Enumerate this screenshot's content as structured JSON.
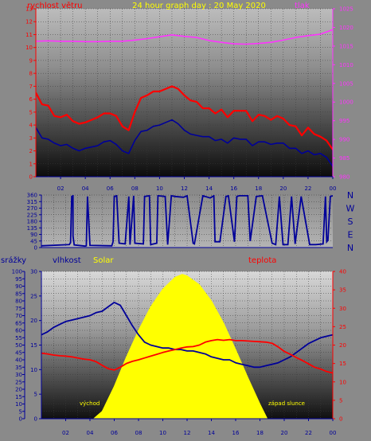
{
  "chart_data": [
    {
      "type": "line",
      "title": "24 hour graph day : 20 May 2020",
      "x_ticks": [
        "02",
        "04",
        "06",
        "08",
        "10",
        "12",
        "14",
        "16",
        "18",
        "20",
        "22",
        "00"
      ],
      "left_axis": {
        "label": "rychlost větru",
        "ylim": [
          0,
          13
        ],
        "ticks": [
          0,
          1,
          2,
          3,
          4,
          5,
          6,
          7,
          8,
          9,
          10,
          11,
          12,
          13
        ]
      },
      "right_axis": {
        "label": "tlak",
        "ylim": [
          980,
          1025
        ],
        "ticks": [
          980,
          985,
          990,
          995,
          1000,
          1005,
          1010,
          1015,
          1020,
          1025
        ]
      },
      "series": [
        {
          "color": "#ff0000",
          "axis": "left",
          "x": [
            0,
            0.5,
            1,
            1.5,
            2,
            2.5,
            3,
            3.5,
            4,
            4.5,
            5,
            5.5,
            6,
            6.5,
            7,
            7.5,
            8,
            8.5,
            9,
            9.5,
            10,
            10.5,
            11,
            11.5,
            12,
            12.5,
            13,
            13.5,
            14,
            14.5,
            15,
            15.5,
            16,
            16.5,
            17,
            17.5,
            18,
            18.5,
            19,
            19.5,
            20,
            20.5,
            21,
            21.5,
            22,
            22.5,
            23,
            23.5,
            24
          ],
          "values": [
            6.5,
            5.6,
            5.5,
            4.7,
            4.6,
            4.8,
            4.3,
            4.1,
            4.2,
            4.4,
            4.6,
            4.9,
            4.9,
            4.7,
            3.9,
            3.6,
            5,
            6.1,
            6.3,
            6.6,
            6.6,
            6.8,
            7,
            6.8,
            6.3,
            5.9,
            5.8,
            5.3,
            5.3,
            4.9,
            5.2,
            4.6,
            5.1,
            5.1,
            5.1,
            4.3,
            4.8,
            4.7,
            4.4,
            4.7,
            4.5,
            4,
            3.9,
            3.2,
            3.8,
            3.3,
            3.1,
            2.8,
            2.1
          ]
        },
        {
          "color": "#000099",
          "axis": "left",
          "x": [
            0,
            0.5,
            1,
            1.5,
            2,
            2.5,
            3,
            3.5,
            4,
            4.5,
            5,
            5.5,
            6,
            6.5,
            7,
            7.5,
            8,
            8.5,
            9,
            9.5,
            10,
            10.5,
            11,
            11.5,
            12,
            12.5,
            13,
            13.5,
            14,
            14.5,
            15,
            15.5,
            16,
            16.5,
            17,
            17.5,
            18,
            18.5,
            19,
            19.5,
            20,
            20.5,
            21,
            21.5,
            22,
            22.5,
            23,
            23.5,
            24
          ],
          "values": [
            3.8,
            3,
            2.9,
            2.6,
            2.4,
            2.5,
            2.2,
            2,
            2.2,
            2.3,
            2.4,
            2.7,
            2.8,
            2.5,
            2,
            1.8,
            2.8,
            3.5,
            3.6,
            3.9,
            4,
            4.2,
            4.4,
            4.1,
            3.6,
            3.3,
            3.2,
            3.1,
            3.1,
            2.8,
            2.9,
            2.6,
            3,
            2.9,
            2.9,
            2.4,
            2.7,
            2.7,
            2.5,
            2.6,
            2.6,
            2.2,
            2.2,
            1.8,
            2,
            1.7,
            1.8,
            1.5,
            0.8
          ]
        },
        {
          "color": "#ff33ff",
          "axis": "right",
          "x": [
            0,
            1,
            2,
            3,
            4,
            5,
            6,
            7,
            8,
            9,
            10,
            11,
            12,
            13,
            14,
            15,
            16,
            17,
            18,
            19,
            20,
            21,
            22,
            23,
            24
          ],
          "values": [
            1016.3,
            1016.4,
            1016.3,
            1016.3,
            1016.2,
            1016.2,
            1016.3,
            1016.3,
            1016.6,
            1017,
            1017.5,
            1018,
            1017.6,
            1017.3,
            1016.5,
            1016,
            1015.6,
            1015.5,
            1015.7,
            1016,
            1016.6,
            1017.3,
            1017.8,
            1018.2,
            1019.4
          ]
        }
      ]
    },
    {
      "type": "line",
      "x_ticks": [
        "02",
        "04",
        "06",
        "08",
        "10",
        "12",
        "14",
        "16",
        "18",
        "20",
        "22",
        "00"
      ],
      "ylim": [
        0,
        360
      ],
      "y_ticks": [
        0,
        45,
        90,
        135,
        180,
        225,
        270,
        315,
        360
      ],
      "direction_labels": [
        "N",
        "W",
        "S",
        "E",
        "N"
      ],
      "series": [
        {
          "color": "#000099",
          "x": [
            0,
            2.3,
            2.4,
            2.4,
            2.5,
            2.6,
            2.6,
            2.7,
            3.6,
            3.7,
            3.8,
            4,
            5.8,
            5.9,
            6,
            6.2,
            6.4,
            6.9,
            7.2,
            7.3,
            7.6,
            7.7,
            8.4,
            8.5,
            8.9,
            9,
            9.5,
            9.6,
            10.2,
            10.4,
            10.7,
            11,
            11.7,
            12,
            12.5,
            12.6,
            13.3,
            13.9,
            14.2,
            14.3,
            14.7,
            15.2,
            15.4,
            15.9,
            16.1,
            16.3,
            17,
            17.2,
            17.7,
            18.2,
            19,
            19.3,
            19.6,
            19.9,
            20.3,
            20.6,
            20.9,
            21.4,
            22.1,
            22.6,
            23.2,
            23.4,
            23.5,
            23.6,
            23.8,
            24
          ],
          "values": [
            12,
            20,
            35,
            30,
            350,
            355,
            80,
            18,
            10,
            12,
            350,
            15,
            12,
            40,
            350,
            355,
            30,
            25,
            350,
            20,
            355,
            30,
            25,
            350,
            355,
            20,
            30,
            355,
            350,
            20,
            355,
            350,
            345,
            355,
            30,
            25,
            355,
            340,
            355,
            40,
            40,
            350,
            355,
            40,
            350,
            355,
            355,
            45,
            350,
            355,
            30,
            20,
            350,
            20,
            20,
            350,
            25,
            350,
            20,
            20,
            25,
            350,
            40,
            50,
            350,
            355
          ]
        }
      ]
    },
    {
      "type": "line",
      "x_ticks": [
        "02",
        "04",
        "06",
        "08",
        "10",
        "12",
        "14",
        "16",
        "18",
        "20",
        "22",
        "00"
      ],
      "axes": [
        {
          "label": "srážky",
          "ylim": [
            0,
            100
          ],
          "ticks": [
            0,
            5,
            10,
            15,
            20,
            25,
            30,
            35,
            40,
            45,
            50,
            55,
            60,
            65,
            70,
            75,
            80,
            85,
            90,
            95,
            100
          ]
        },
        {
          "label": "vlhkost",
          "ylim": [
            0,
            30
          ],
          "ticks": [
            0,
            5,
            10,
            15,
            20,
            25,
            30
          ]
        },
        {
          "label": "Solar"
        },
        {
          "label": "teplota",
          "ylim": [
            0,
            40
          ],
          "ticks": [
            0,
            5,
            10,
            15,
            20,
            25,
            30,
            35,
            40
          ]
        }
      ],
      "annotations": [
        "východ",
        "západ slunce"
      ],
      "series": [
        {
          "color": "#000099",
          "x": [
            0,
            0.5,
            1,
            1.5,
            2,
            2.5,
            3,
            3.5,
            4,
            4.5,
            5,
            5.5,
            6,
            6.5,
            7,
            7.5,
            8,
            8.5,
            9,
            9.5,
            10,
            10.5,
            11,
            11.5,
            12,
            12.5,
            13,
            13.5,
            14,
            14.5,
            15,
            15.5,
            16,
            16.5,
            17,
            17.5,
            18,
            18.5,
            19,
            19.5,
            20,
            20.5,
            21,
            21.5,
            22,
            22.5,
            23,
            23.5,
            24
          ],
          "values": [
            57,
            59,
            62,
            64,
            66,
            67,
            68,
            69,
            70,
            72,
            73,
            76,
            79,
            77,
            70,
            63,
            57,
            52,
            50,
            49,
            48,
            48,
            47,
            47,
            46,
            46,
            45,
            44,
            42,
            41,
            40,
            40,
            38,
            37,
            36,
            35,
            35,
            36,
            37,
            38,
            40,
            42,
            45,
            48,
            51,
            53,
            55,
            56,
            57
          ]
        },
        {
          "color": "#ff0000",
          "x": [
            0,
            0.5,
            1,
            1.5,
            2,
            2.5,
            3,
            3.5,
            4,
            4.5,
            5,
            5.5,
            6,
            6.5,
            7,
            7.5,
            8,
            8.5,
            9,
            9.5,
            10,
            10.5,
            11,
            11.5,
            12,
            12.5,
            13,
            13.5,
            14,
            14.5,
            15,
            15.5,
            16,
            16.5,
            17,
            17.5,
            18,
            18.5,
            19,
            19.5,
            20,
            20.5,
            21,
            21.5,
            22,
            22.5,
            23,
            23.5,
            24
          ],
          "values": [
            17.8,
            17.6,
            17.3,
            17.1,
            17,
            16.8,
            16.5,
            16.2,
            16,
            15.5,
            14.5,
            13.6,
            13.2,
            14,
            15,
            15.6,
            16,
            16.5,
            17,
            17.5,
            18,
            18.4,
            18.8,
            19.2,
            19.5,
            19.6,
            20,
            20.8,
            21.2,
            21.5,
            21.3,
            21.5,
            21.2,
            21.2,
            21.1,
            21,
            20.9,
            20.8,
            20.5,
            19.5,
            18.3,
            17.5,
            16.6,
            15.8,
            14.9,
            14,
            13.5,
            12.8,
            12.4
          ]
        },
        {
          "color": "#ffff00",
          "kind": "area",
          "ylim": [
            0,
            100
          ],
          "x": [
            4.3,
            5,
            6,
            7,
            8,
            9,
            10,
            11,
            11.6,
            12,
            13,
            14,
            15,
            16,
            17,
            18,
            18.6
          ],
          "values": [
            0,
            5,
            22,
            42,
            60,
            76,
            88,
            96,
            98,
            97,
            91,
            80,
            65,
            47,
            28,
            10,
            0
          ]
        }
      ]
    }
  ]
}
